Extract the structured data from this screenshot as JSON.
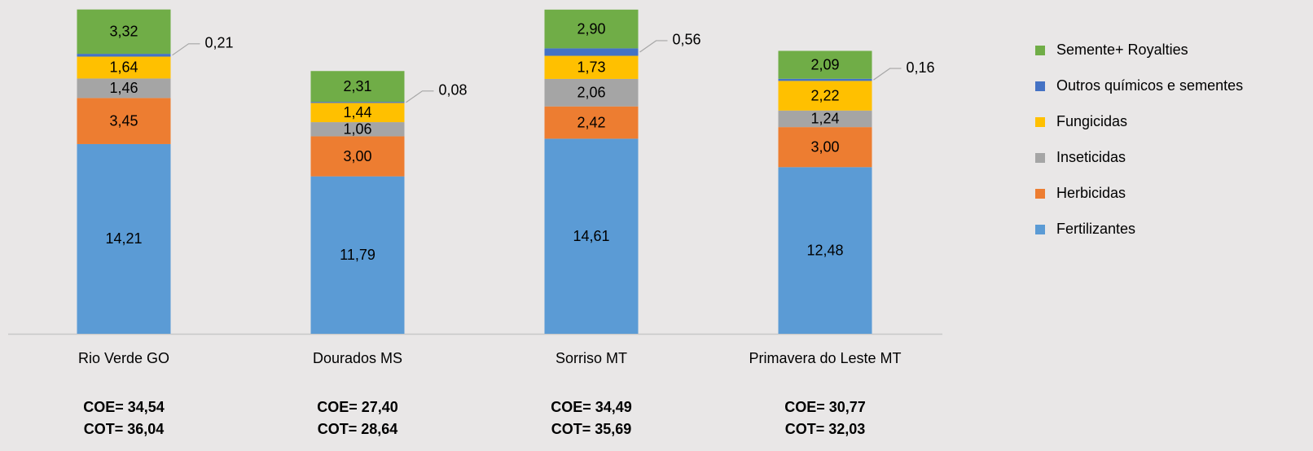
{
  "chart_data": {
    "type": "stacked_bar",
    "categories": [
      "Rio Verde GO",
      "Dourados MS",
      "Sorriso MT",
      "Primavera do Leste MT"
    ],
    "series": [
      {
        "name": "Fertilizantes",
        "color": "#5b9bd5",
        "values": [
          14.21,
          11.79,
          14.61,
          12.48
        ],
        "value_labels": [
          "14,21",
          "11,79",
          "14,61",
          "12,48"
        ]
      },
      {
        "name": "Herbicidas",
        "color": "#ed7d31",
        "values": [
          3.45,
          3.0,
          2.42,
          3.0
        ],
        "value_labels": [
          "3,45",
          "3,00",
          "2,42",
          "3,00"
        ]
      },
      {
        "name": "Inseticidas",
        "color": "#a5a5a5",
        "values": [
          1.46,
          1.06,
          2.06,
          1.24
        ],
        "value_labels": [
          "1,46",
          "1,06",
          "2,06",
          "1,24"
        ]
      },
      {
        "name": "Fungicidas",
        "color": "#ffc000",
        "values": [
          1.64,
          1.44,
          1.73,
          2.22
        ],
        "value_labels": [
          "1,64",
          "1,44",
          "1,73",
          "2,22"
        ]
      },
      {
        "name": "Outros químicos e sementes",
        "color": "#4472c4",
        "values": [
          0.21,
          0.08,
          0.56,
          0.16
        ],
        "value_labels": [
          "0,21",
          "0,08",
          "0,56",
          "0,16"
        ]
      },
      {
        "name": "Semente+ Royalties",
        "color": "#70ad47",
        "values": [
          3.32,
          2.31,
          2.9,
          2.09
        ],
        "value_labels": [
          "3,32",
          "2,31",
          "2,90",
          "2,09"
        ]
      }
    ],
    "annotations": [
      [
        "COE= 34,54",
        "COT= 36,04"
      ],
      [
        "COE= 27,40",
        "COT= 28,64"
      ],
      [
        "COE= 34,49",
        "COT= 35,69"
      ],
      [
        "COE= 30,77",
        "COT= 32,03"
      ]
    ],
    "ylim": [
      0,
      25
    ],
    "legend": "right"
  }
}
